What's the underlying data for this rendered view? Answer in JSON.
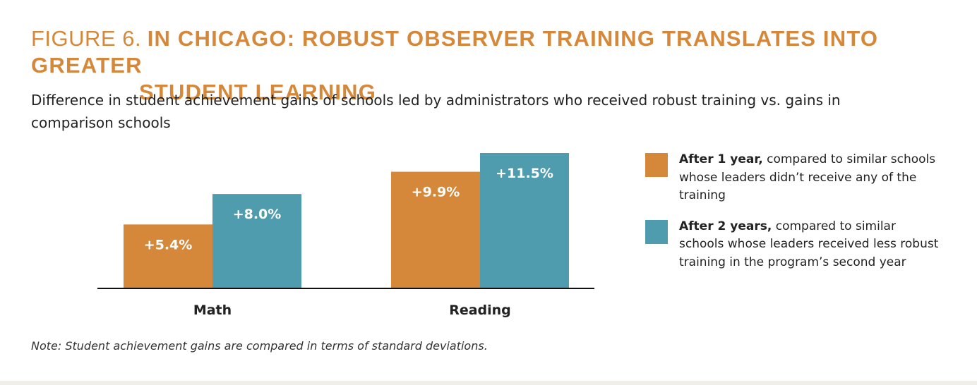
{
  "figure_label": "FIGURE 6.",
  "headline_line1": "IN CHICAGO: ROBUST OBSERVER TRAINING TRANSLATES INTO GREATER",
  "headline_line2": "STUDENT LEARNING",
  "subtitle": "Difference in student achievement gains of schools led by administrators who received robust training vs. gains in comparison schools",
  "note": "Note: Student achievement gains are compared in terms of standard deviations.",
  "colors": {
    "accent": "#d6883a",
    "series1": "#d6883a",
    "series2": "#4f9caf"
  },
  "legend": [
    {
      "bold": "After 1 year,",
      "rest": " compared to similar schools whose leaders didn’t receive any of the training"
    },
    {
      "bold": "After 2 years,",
      "rest": " compared to similar schools whose leaders received less robust training in the program’s second year"
    }
  ],
  "chart_data": {
    "type": "bar",
    "categories": [
      "Math",
      "Reading"
    ],
    "series": [
      {
        "values": [
          5.4,
          9.9
        ],
        "labels": [
          "+5.4%",
          "+9.9%"
        ]
      },
      {
        "values": [
          8.0,
          11.5
        ],
        "labels": [
          "+8.0%",
          "+11.5%"
        ]
      }
    ],
    "ylim": [
      0,
      11.5
    ],
    "grid": false,
    "legend_position": "right"
  }
}
